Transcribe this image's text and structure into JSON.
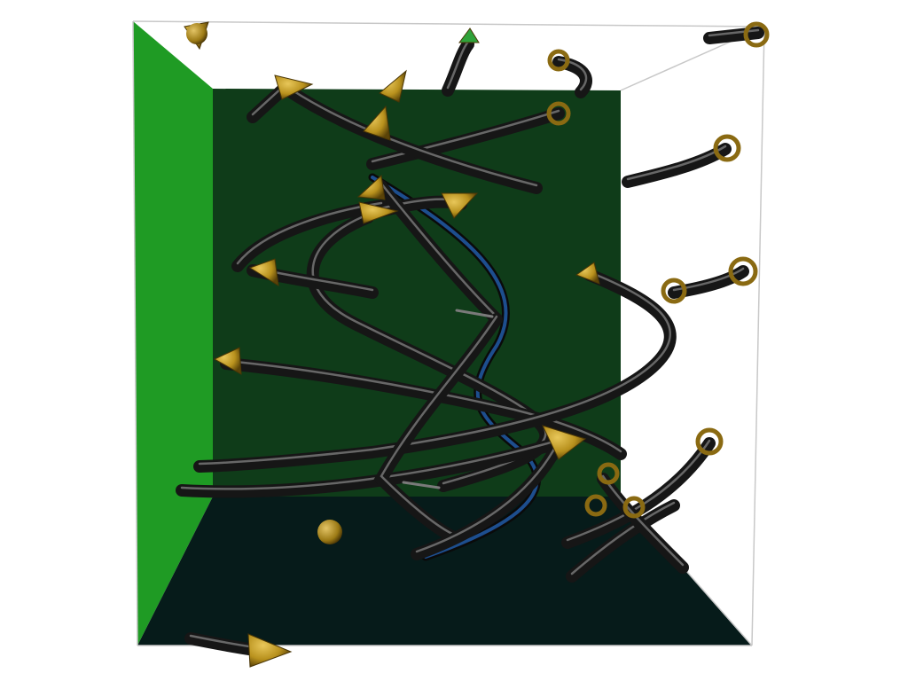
{
  "scene": {
    "kind": "3d-streamline-visualization",
    "colors": {
      "background": "#ffffff",
      "left_wall": "#1f9b24",
      "back_wall": "#0f3c19",
      "floor": "#061b1a",
      "cube_edge": "#c8c8c8",
      "tube": "#161616",
      "tube_highlight": "#8a8a8a",
      "center_streamline": "#1d4e8e",
      "arrowhead": "#b8911d",
      "seed_ring": "#8a6a12"
    },
    "glyphs": {
      "arrow": "cone-arrowhead",
      "seed": "ring-seed-point",
      "sphere": "sphere-marker"
    }
  }
}
